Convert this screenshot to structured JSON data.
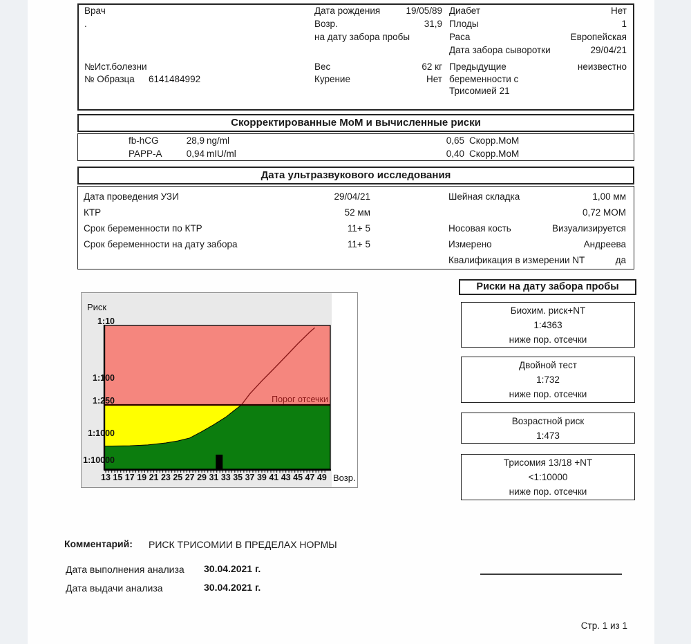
{
  "page": {
    "page_number": "Стр. 1 из 1"
  },
  "patient": {
    "doctor_label": "Врач",
    "doctor_value": ".",
    "history_label": "№Ист.болезни",
    "sample_label": "№ Образца",
    "sample_value": "6141484992",
    "birth_label": "Дата рождения",
    "birth_value": "19/05/89",
    "age_label": "Возр.",
    "age_value": "31,9",
    "age_sub_label": "на дату забора пробы",
    "weight_label": "Вес",
    "weight_value": "62  кг",
    "smoking_label": "Курение",
    "smoking_value": "Нет",
    "diabetes_label": "Диабет",
    "diabetes_value": "Нет",
    "fetuses_label": "Плоды",
    "fetuses_value": "1",
    "race_label": "Раса",
    "race_value": "Европейская",
    "serum_date_label": "Дата забора сыворотки",
    "serum_date_value": "29/04/21",
    "prev_label_1": "Предыдущие",
    "prev_label_2": "беременности с",
    "prev_label_3": "Трисомией 21",
    "prev_value": "неизвестно"
  },
  "mom": {
    "header": "Скорректированные МоМ и вычисленные риски",
    "rows": [
      {
        "name": "fb-hCG",
        "value": "28,9",
        "unit": "ng/ml",
        "mom": "0,65",
        "mom_label": "Скорр.МоМ"
      },
      {
        "name": "PAPP-A",
        "value": "0,94",
        "unit": "mIU/ml",
        "mom": "0,40",
        "mom_label": "Скорр.МоМ"
      }
    ]
  },
  "ultrasound": {
    "header": "Дата ультразвукового исследования",
    "date_label": "Дата проведения УЗИ",
    "date_value": "29/04/21",
    "ktr_label": "КТР",
    "ktr_value": "52 мм",
    "ga_ktr_label": "Срок беременности по КТР",
    "ga_ktr_value": "11+  5",
    "ga_sample_label": "Срок беременности на дату забора",
    "ga_sample_value": "11+  5",
    "nt_label": "Шейная складка",
    "nt_value": "1,00    мм",
    "nt_mom_value": "0,72 МОМ",
    "nasal_label": "Носовая кость",
    "nasal_value": "Визуализируется",
    "measured_label": "Измерено",
    "measured_value": "Андреева",
    "nt_qual_label": "Квалификация в измерении NT",
    "nt_qual_value": "да"
  },
  "risks": {
    "header": "Риски на дату забора пробы",
    "boxes": [
      {
        "title": "Биохим. риск+NT",
        "value": "1:4363",
        "note": "ниже пор. отсечки"
      },
      {
        "title": "Двойной тест",
        "value": "1:732",
        "note": "ниже пор. отсечки"
      },
      {
        "title": "Возрастной риск",
        "value": "1:473",
        "note": ""
      },
      {
        "title": "Трисомия 13/18 +NT",
        "value": "<1:10000",
        "note": "ниже пор. отсечки"
      }
    ]
  },
  "comment": {
    "label": "Комментарий:",
    "text": "РИСК ТРИСОМИИ В ПРЕДЕЛАХ НОРМЫ"
  },
  "analysis_dates": {
    "performed_label": "Дата выполнения анализа",
    "performed_value": "30.04.2021 г.",
    "issued_label": "Дата выдачи анализа",
    "issued_value": "30.04.2021 г."
  },
  "chart_data": {
    "type": "area",
    "title": "Риск",
    "xlabel": "Возр.",
    "x_ticks": [
      13,
      15,
      17,
      19,
      21,
      23,
      25,
      27,
      29,
      31,
      33,
      35,
      37,
      39,
      41,
      43,
      45,
      47,
      49
    ],
    "y_ticks": [
      {
        "label": "1:10",
        "risk": 10
      },
      {
        "label": "1:100",
        "risk": 100
      },
      {
        "label": "1:250",
        "risk": 250
      },
      {
        "label": "1:1000",
        "risk": 1000
      },
      {
        "label": "1:10000",
        "risk": 10000
      }
    ],
    "cutoff": {
      "label": "Порог отсечки",
      "risk": 250
    },
    "age_risk_curve": [
      [
        13,
        2100
      ],
      [
        17,
        2050
      ],
      [
        20,
        1900
      ],
      [
        23,
        1600
      ],
      [
        25,
        1350
      ],
      [
        27,
        1050
      ],
      [
        29,
        780
      ],
      [
        31,
        580
      ],
      [
        33,
        420
      ],
      [
        34.5,
        310
      ],
      [
        35.6,
        250
      ],
      [
        37,
        160
      ],
      [
        39,
        95
      ],
      [
        41,
        58
      ],
      [
        43,
        35
      ],
      [
        45,
        21
      ],
      [
        47,
        13
      ],
      [
        47.8,
        11
      ]
    ],
    "patient_marker": {
      "age": 31.9,
      "risk": 4363
    },
    "colors": {
      "above_cutoff": "#f5867e",
      "intermediate": "#ffff00",
      "below_curve": "#0c7d0e",
      "marker": "#000000",
      "cutoff_line": "#2e0000",
      "curve_line": "#8b1a1a",
      "panel_bg": "#e9e9e9"
    }
  }
}
